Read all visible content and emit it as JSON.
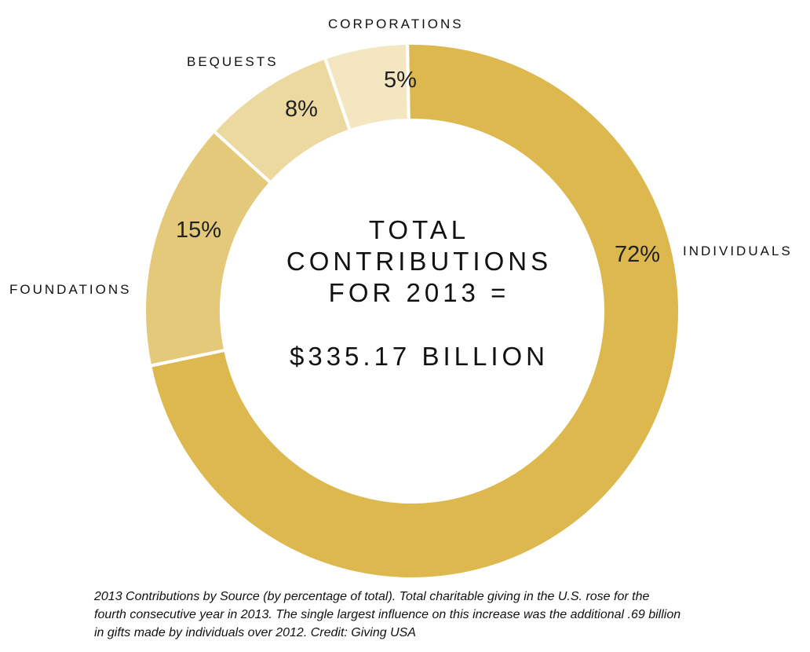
{
  "chart_data": {
    "type": "pie",
    "variant": "donut",
    "slices": [
      {
        "category": "INDIVIDUALS",
        "value": 72,
        "label": "72%",
        "color": "#dcb84f"
      },
      {
        "category": "FOUNDATIONS",
        "value": 15,
        "label": "15%",
        "color": "#e4c97a"
      },
      {
        "category": "BEQUESTS",
        "value": 8,
        "label": "8%",
        "color": "#ecd9a0"
      },
      {
        "category": "CORPORATIONS",
        "value": 5,
        "label": "5%",
        "color": "#f3e6c1"
      }
    ],
    "center_text": {
      "line1": "TOTAL",
      "line2": "CONTRIBUTIONS",
      "line3": "FOR 2013 =",
      "line4": "$335.17 BILLION"
    }
  },
  "caption": {
    "line1": "2013 Contributions by Source (by percentage of total). Total charitable giving in the U.S. rose for the",
    "line2": "fourth consecutive year in 2013. The single largest influence on this increase was the additional .69 billion",
    "line3": "in gifts made by individuals over 2012. Credit: Giving USA"
  },
  "colors": {
    "background": "#ffffff",
    "separator": "#ffffff",
    "text": "#111111"
  }
}
